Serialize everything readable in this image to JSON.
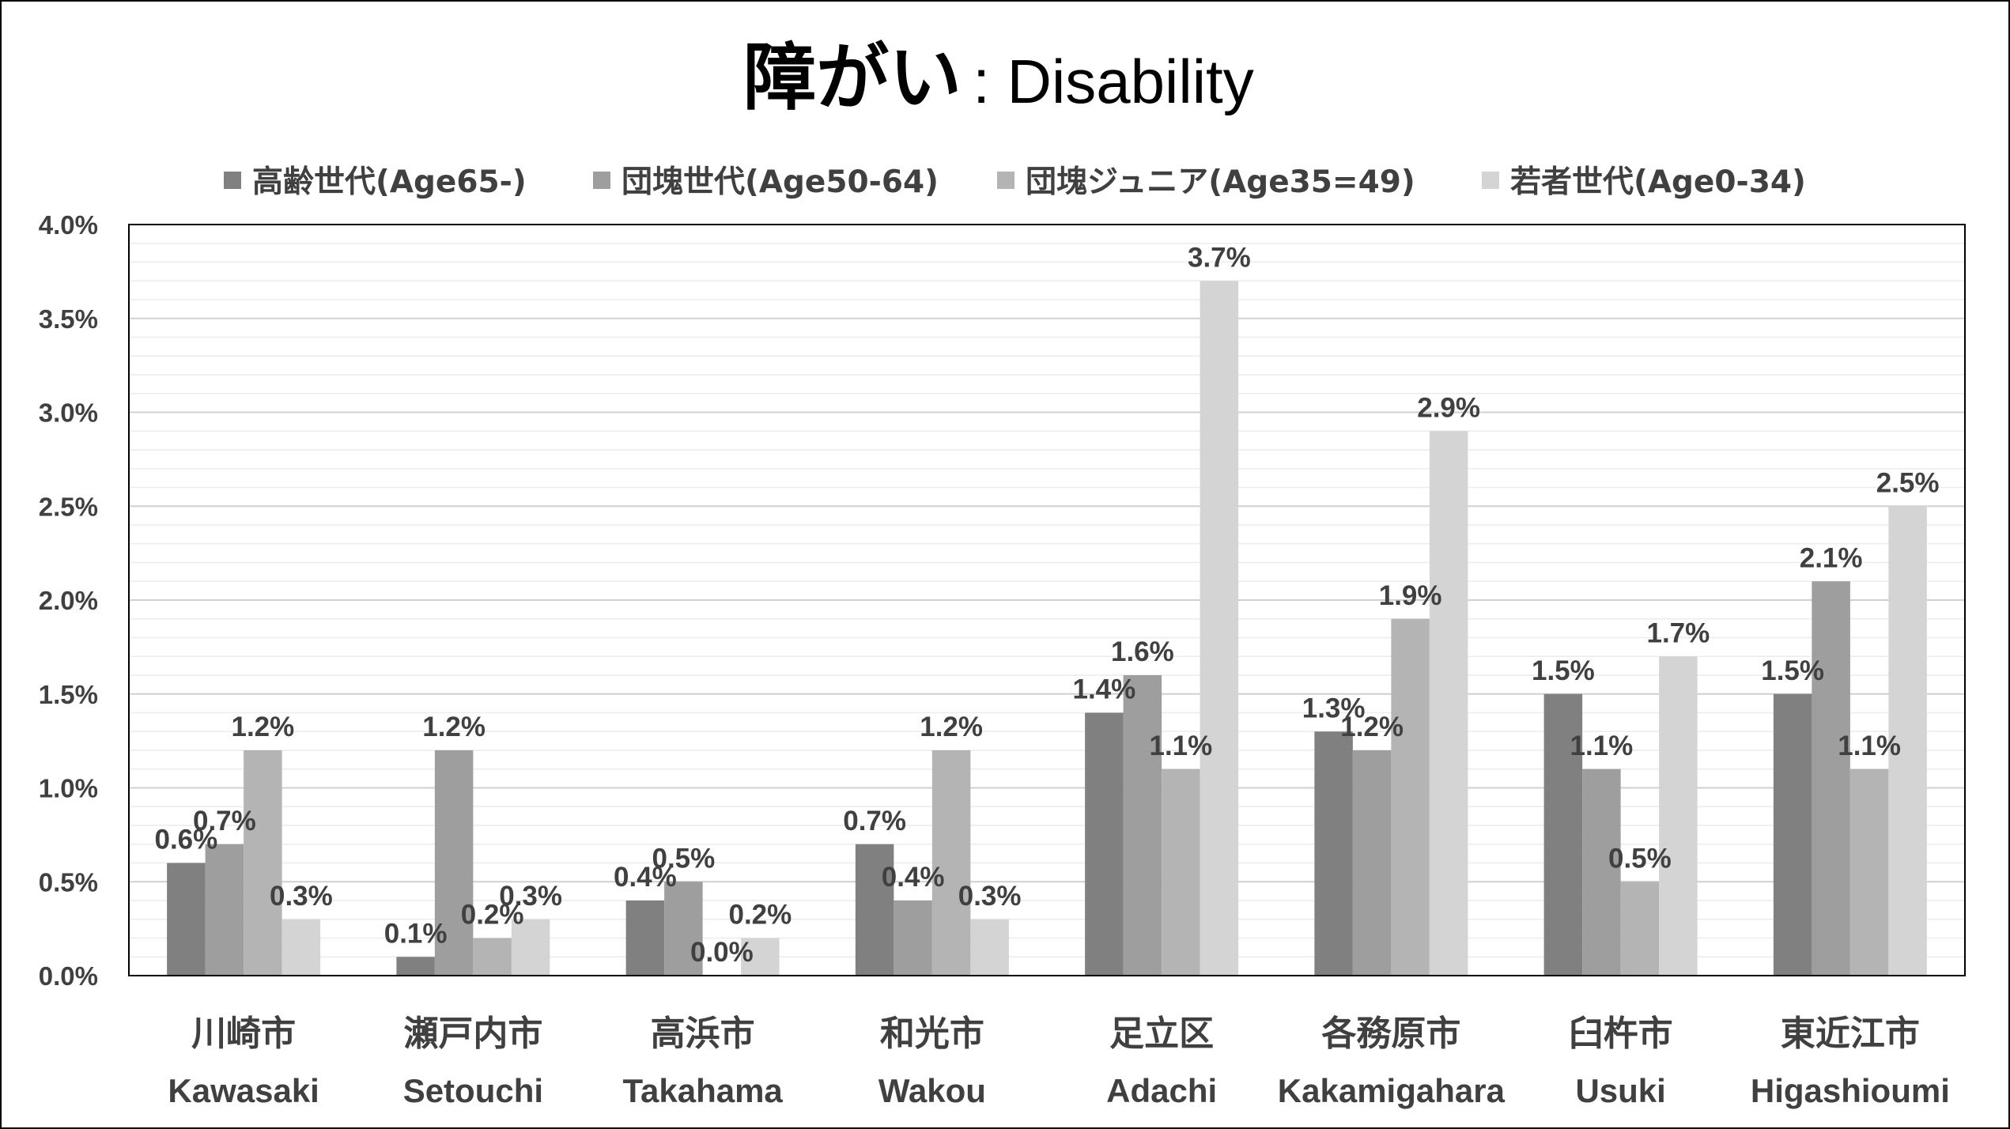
{
  "chart_data": {
    "type": "bar",
    "title": "障がい",
    "subtitle": ": Disability",
    "legend_position": "top",
    "grid": true,
    "ylim": [
      0,
      0.04
    ],
    "y_ticks": [
      0,
      0.005,
      0.01,
      0.015,
      0.02,
      0.025,
      0.03,
      0.035,
      0.04
    ],
    "y_tick_labels": [
      "0.0%",
      "0.5%",
      "1.0%",
      "1.5%",
      "2.0%",
      "2.5%",
      "3.0%",
      "3.5%",
      "4.0%"
    ],
    "categories": [
      {
        "ja": "川崎市",
        "en": "Kawasaki"
      },
      {
        "ja": "瀬戸内市",
        "en": "Setouchi"
      },
      {
        "ja": "高浜市",
        "en": "Takahama"
      },
      {
        "ja": "和光市",
        "en": "Wakou"
      },
      {
        "ja": "足立区",
        "en": "Adachi"
      },
      {
        "ja": "各務原市",
        "en": "Kakamigahara"
      },
      {
        "ja": "臼杵市",
        "en": "Usuki"
      },
      {
        "ja": "東近江市",
        "en": "Higashioumi"
      }
    ],
    "series": [
      {
        "name": "高齢世代(Age65-)",
        "color": "#808080",
        "values": [
          0.006,
          0.001,
          0.004,
          0.007,
          0.014,
          0.013,
          0.015,
          0.015
        ],
        "labels": [
          "0.6%",
          "0.1%",
          "0.4%",
          "0.7%",
          "1.4%",
          "1.3%",
          "1.5%",
          "1.5%"
        ]
      },
      {
        "name": "団塊世代(Age50-64)",
        "color": "#9e9e9e",
        "values": [
          0.007,
          0.012,
          0.005,
          0.004,
          0.016,
          0.012,
          0.011,
          0.021
        ],
        "labels": [
          "0.7%",
          "1.2%",
          "0.5%",
          "0.4%",
          "1.6%",
          "1.2%",
          "1.1%",
          "2.1%"
        ]
      },
      {
        "name": "団塊ジュニア(Age35=49)",
        "color": "#b4b4b4",
        "values": [
          0.012,
          0.002,
          0.0,
          0.012,
          0.011,
          0.019,
          0.005,
          0.011
        ],
        "labels": [
          "1.2%",
          "0.2%",
          "0.0%",
          "1.2%",
          "1.1%",
          "1.9%",
          "0.5%",
          "1.1%"
        ]
      },
      {
        "name": "若者世代(Age0-34)",
        "color": "#d4d4d4",
        "values": [
          0.003,
          0.003,
          0.002,
          0.003,
          0.037,
          0.029,
          0.017,
          0.025
        ],
        "labels": [
          "0.3%",
          "0.3%",
          "0.2%",
          "0.3%",
          "3.7%",
          "2.9%",
          "1.7%",
          "2.5%"
        ]
      }
    ]
  }
}
